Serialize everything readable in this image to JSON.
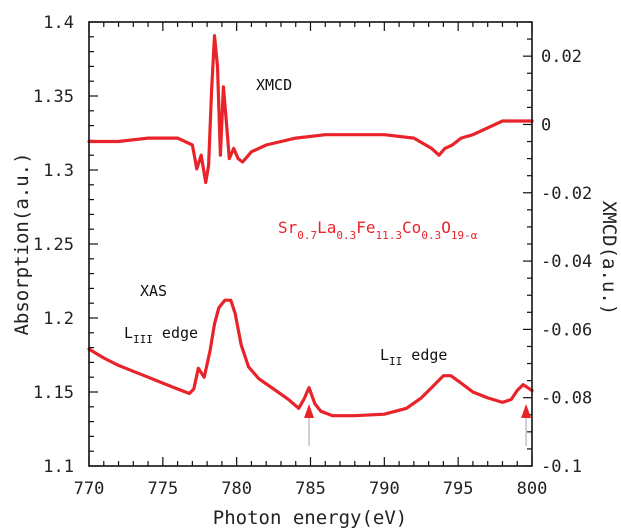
{
  "chart_data": {
    "type": "line",
    "title": "",
    "xlabel": "Photon energy(eV)",
    "ylabel_left": "Absorption(a.u.)",
    "ylabel_right": "XMCD(a.u.)",
    "xlim": [
      770,
      800
    ],
    "ylim_left": [
      1.1,
      1.4
    ],
    "ylim_right": [
      -0.1,
      0.03
    ],
    "x_ticks": [
      "770",
      "775",
      "780",
      "785",
      "790",
      "795",
      "800"
    ],
    "x_tick_values": [
      770,
      775,
      780,
      785,
      790,
      795,
      800
    ],
    "y_ticks_left": [
      "1.1",
      "1.15",
      "1.2",
      "1.25",
      "1.3",
      "1.35",
      "1.4"
    ],
    "y_tick_values_left": [
      1.1,
      1.15,
      1.2,
      1.25,
      1.3,
      1.35,
      1.4
    ],
    "y_ticks_right": [
      "-0.1",
      "-0.08",
      "-0.06",
      "-0.04",
      "-0.02",
      "0",
      "0.02"
    ],
    "y_tick_values_right": [
      -0.1,
      -0.08,
      -0.06,
      -0.04,
      -0.02,
      0,
      0.02
    ],
    "grid": false,
    "line_color": "#e8232a",
    "series": [
      {
        "name": "XAS",
        "axis": "left",
        "x": [
          770,
          771,
          772,
          773,
          774,
          775,
          776,
          776.8,
          777.1,
          777.4,
          777.8,
          778.2,
          778.5,
          778.8,
          779.2,
          779.6,
          779.9,
          780.3,
          780.8,
          781.5,
          782.5,
          783.5,
          784.2,
          784.6,
          784.9,
          785.3,
          785.7,
          786.5,
          788,
          790,
          791.5,
          792.5,
          793.3,
          794,
          794.5,
          795.2,
          796,
          797,
          798,
          798.6,
          799,
          799.4,
          799.7,
          800
        ],
        "y": [
          1.179,
          1.173,
          1.168,
          1.164,
          1.16,
          1.156,
          1.152,
          1.149,
          1.152,
          1.166,
          1.16,
          1.178,
          1.196,
          1.207,
          1.212,
          1.212,
          1.203,
          1.182,
          1.167,
          1.159,
          1.152,
          1.145,
          1.139,
          1.146,
          1.153,
          1.142,
          1.137,
          1.134,
          1.134,
          1.135,
          1.139,
          1.146,
          1.154,
          1.161,
          1.161,
          1.156,
          1.15,
          1.146,
          1.143,
          1.145,
          1.151,
          1.155,
          1.153,
          1.151
        ]
      },
      {
        "name": "XMCD",
        "axis": "right",
        "x": [
          770,
          772,
          774,
          776,
          777,
          777.3,
          777.6,
          777.9,
          778.1,
          778.3,
          778.5,
          778.7,
          778.9,
          779.1,
          779.3,
          779.5,
          779.8,
          780.1,
          780.4,
          781,
          782,
          784,
          786,
          788,
          790,
          792,
          793.2,
          793.7,
          794.1,
          794.6,
          795.2,
          796,
          798,
          800
        ],
        "y": [
          -0.005,
          -0.005,
          -0.004,
          -0.004,
          -0.006,
          -0.013,
          -0.009,
          -0.017,
          -0.012,
          0.01,
          0.026,
          0.017,
          -0.009,
          0.011,
          0.001,
          -0.01,
          -0.007,
          -0.01,
          -0.011,
          -0.008,
          -0.006,
          -0.004,
          -0.003,
          -0.003,
          -0.003,
          -0.004,
          -0.007,
          -0.009,
          -0.007,
          -0.006,
          -0.004,
          -0.003,
          0.001,
          0.001
        ]
      }
    ],
    "annotations": {
      "xmcd": "XMCD",
      "xas": "XAS",
      "l3_main": "L",
      "l3_sub": "III",
      "l3_edge": " edge",
      "l2_main": "L",
      "l2_sub": "II",
      "l2_edge": " edge",
      "formula": [
        {
          "t": "Sr",
          "sub": false
        },
        {
          "t": "0.7",
          "sub": true
        },
        {
          "t": "La",
          "sub": false
        },
        {
          "t": "0.3",
          "sub": true
        },
        {
          "t": "Fe",
          "sub": false
        },
        {
          "t": "11.3",
          "sub": true
        },
        {
          "t": "Co",
          "sub": false
        },
        {
          "t": "0.3",
          "sub": true
        },
        {
          "t": "O",
          "sub": false
        },
        {
          "t": "19-α",
          "sub": true
        }
      ]
    },
    "arrows_at_x": [
      784.9,
      799.6
    ]
  }
}
